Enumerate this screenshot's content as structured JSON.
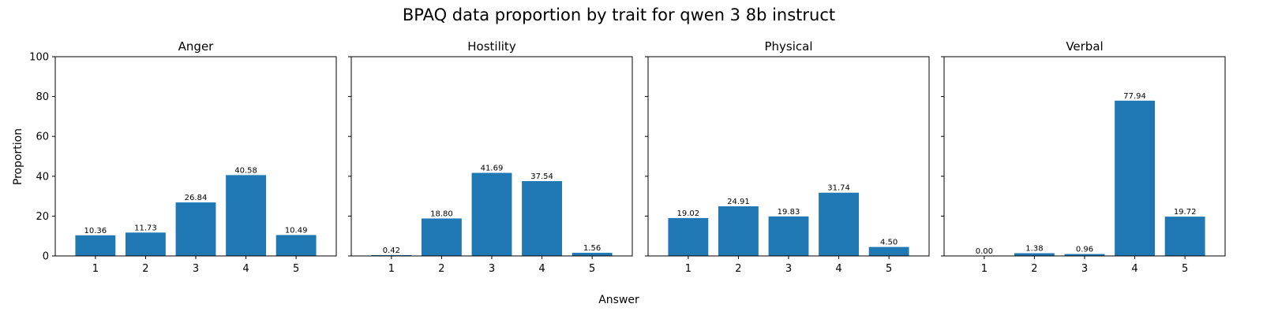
{
  "chart_data": {
    "type": "bar",
    "title": "BPAQ data proportion by trait for qwen 3 8b instruct",
    "xlabel": "Answer",
    "ylabel": "Proportion",
    "ylim": [
      0,
      100
    ],
    "yticks": [
      0,
      20,
      40,
      60,
      80,
      100
    ],
    "categories": [
      "1",
      "2",
      "3",
      "4",
      "5"
    ],
    "bar_color": "#1f77b4",
    "grid": false,
    "sharey": true,
    "panels": [
      {
        "title": "Anger",
        "values": [
          10.36,
          11.73,
          26.84,
          40.58,
          10.49
        ],
        "value_labels": [
          "10.36",
          "11.73",
          "26.84",
          "40.58",
          "10.49"
        ]
      },
      {
        "title": "Hostility",
        "values": [
          0.42,
          18.8,
          41.69,
          37.54,
          1.56
        ],
        "value_labels": [
          "0.42",
          "18.80",
          "41.69",
          "37.54",
          "1.56"
        ]
      },
      {
        "title": "Physical",
        "values": [
          19.02,
          24.91,
          19.83,
          31.74,
          4.5
        ],
        "value_labels": [
          "19.02",
          "24.91",
          "19.83",
          "31.74",
          "4.50"
        ]
      },
      {
        "title": "Verbal",
        "values": [
          0.0,
          1.38,
          0.96,
          77.94,
          19.72
        ],
        "value_labels": [
          "0.00",
          "1.38",
          "0.96",
          "77.94",
          "19.72"
        ]
      }
    ]
  }
}
